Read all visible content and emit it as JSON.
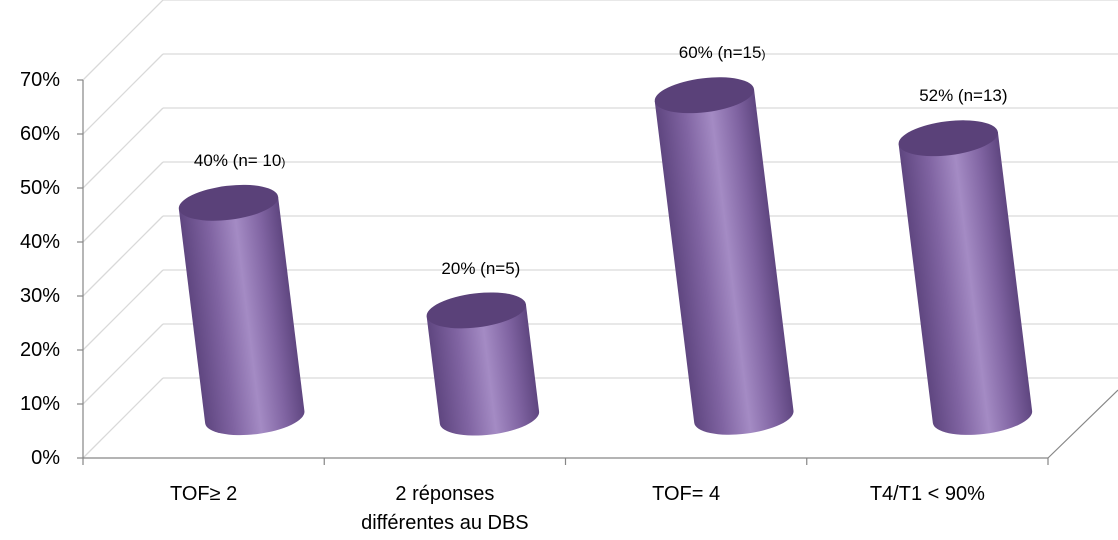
{
  "chart_data": {
    "type": "bar",
    "style": "3d-cylinder",
    "categories": [
      [
        "TOF≥ 2"
      ],
      [
        "2 réponses",
        "différentes au DBS"
      ],
      [
        "TOF= 4"
      ],
      [
        "T4/T1 < 90%"
      ]
    ],
    "values": [
      40,
      20,
      60,
      52
    ],
    "data_labels": [
      {
        "main": "40% (n= 10",
        "tail": ")"
      },
      {
        "main": "20% (n=5)",
        "tail": ""
      },
      {
        "main": "60% (n=15",
        "tail": ")"
      },
      {
        "main": "52% (n=13)",
        "tail": ""
      }
    ],
    "y_ticks": [
      "0%",
      "10%",
      "20%",
      "30%",
      "40%",
      "50%",
      "60%",
      "70%"
    ],
    "ylim": [
      0,
      70
    ],
    "grid": true,
    "legend": false,
    "colors": {
      "bar_body": "#8064a2",
      "bar_light": "#a48bc4",
      "bar_dark": "#5f4680",
      "bar_top": "#5a4179",
      "grid": "#d9d9d9",
      "axis": "#868686"
    }
  }
}
